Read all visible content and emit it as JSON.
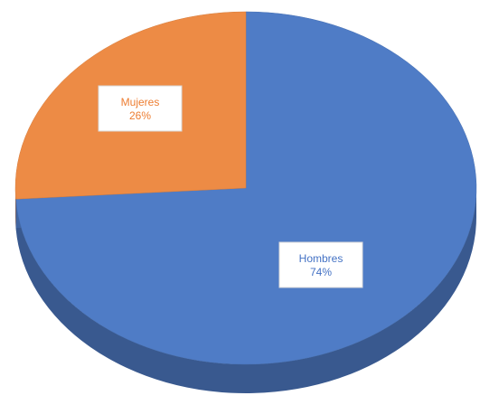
{
  "chart_data": {
    "type": "pie",
    "style": "3d",
    "categories": [
      "Hombres",
      "Mujeres"
    ],
    "values": [
      74,
      26
    ],
    "value_labels": [
      "74%",
      "26%"
    ],
    "colors": [
      "#4F7CC6",
      "#ED8B45"
    ],
    "label_colors": [
      "#4472C4",
      "#ED7D31"
    ],
    "title": "",
    "legend": "none"
  }
}
